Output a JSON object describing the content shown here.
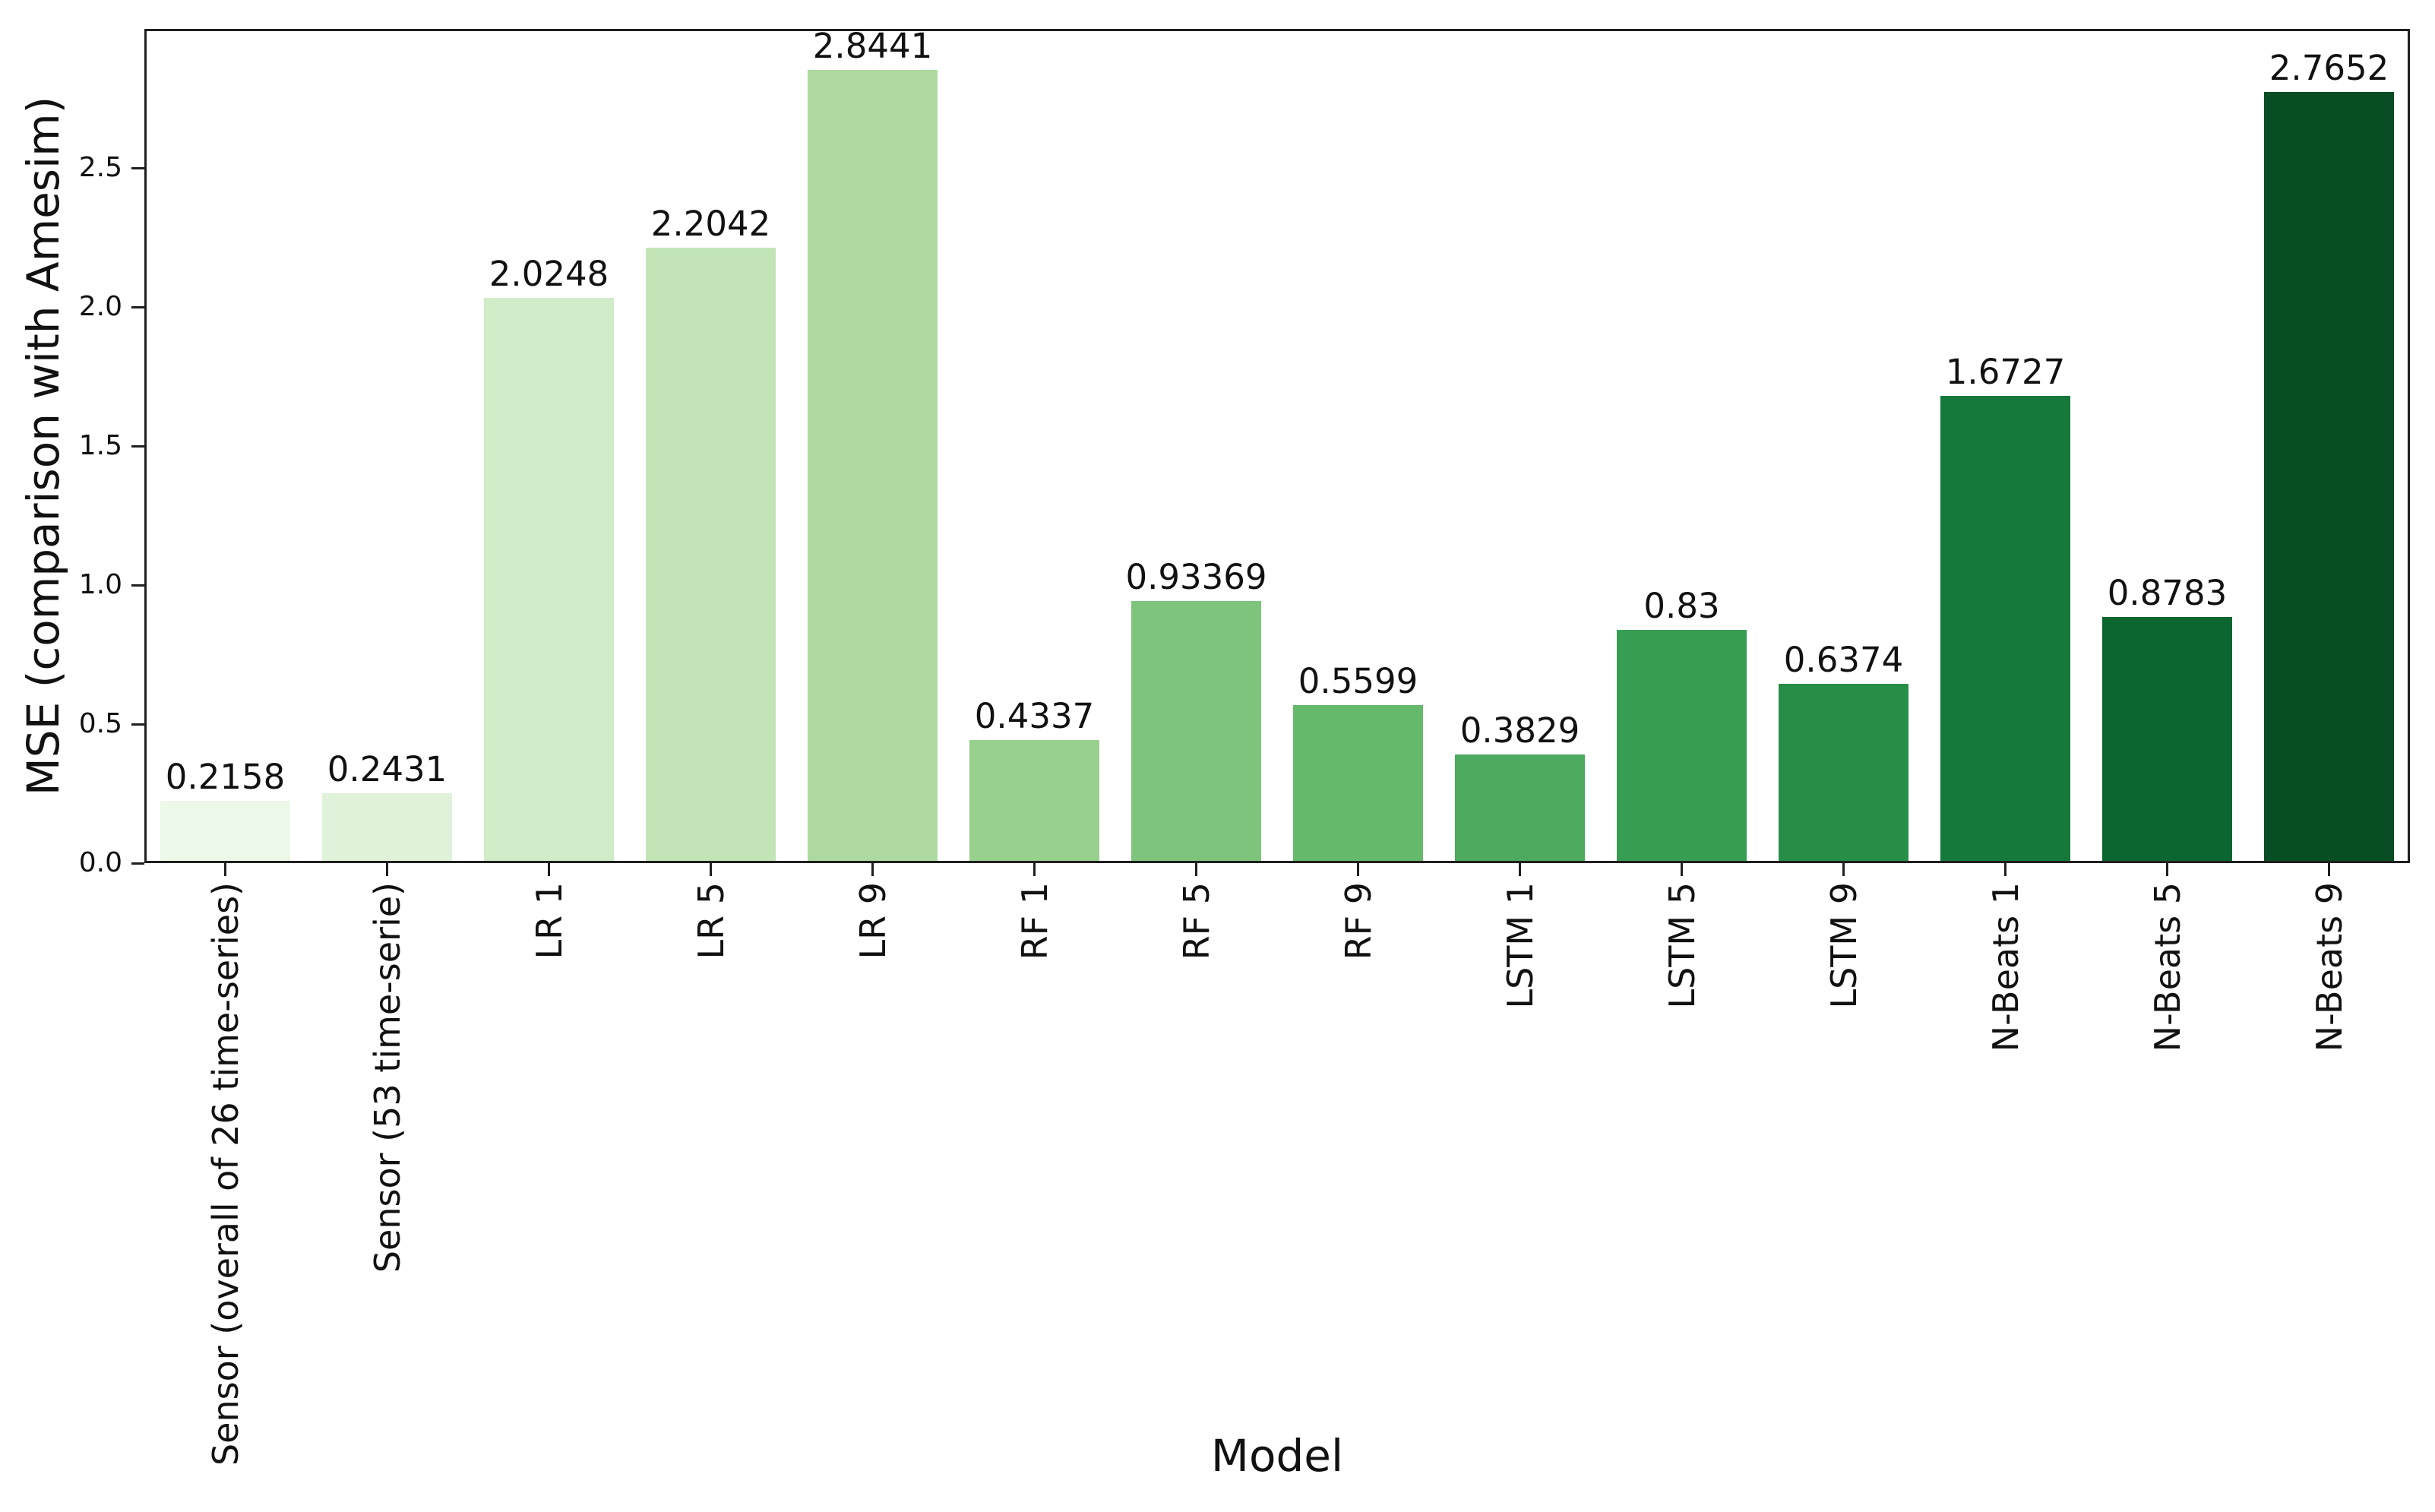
{
  "chart_data": {
    "type": "bar",
    "title": "",
    "xlabel": "Model",
    "ylabel": "MSE (comparison with Amesim)",
    "ylim": [
      0,
      3.0
    ],
    "yticks": [
      0.0,
      0.5,
      1.0,
      1.5,
      2.0,
      2.5
    ],
    "grid": false,
    "legend": null,
    "categories": [
      "Sensor (overall of 26 time-series)",
      "Sensor (53 time-serie)",
      "LR 1",
      "LR 5",
      "LR 9",
      "RF 1",
      "RF 5",
      "RF 9",
      "LSTM 1",
      "LSTM 5",
      "LSTM 9",
      "N-Beats 1",
      "N-Beats 5",
      "N-Beats 9"
    ],
    "values": [
      0.2158,
      0.2431,
      2.0248,
      2.2042,
      2.8441,
      0.4337,
      0.93369,
      0.5599,
      0.3829,
      0.83,
      0.6374,
      1.6727,
      0.8783,
      2.7652
    ],
    "value_labels": [
      "0.2158",
      "0.2431",
      "2.0248",
      "2.2042",
      "2.8441",
      "0.4337",
      "0.93369",
      "0.5599",
      "0.3829",
      "0.83",
      "0.6374",
      "1.6727",
      "0.8783",
      "2.7652"
    ],
    "bar_colors": [
      "#ecf8e8",
      "#e0f3da",
      "#d1ecc9",
      "#c2e4b6",
      "#aedaa1",
      "#98d08d",
      "#7fc47c",
      "#65b96a",
      "#4ca95d",
      "#389e54",
      "#278e48",
      "#15793c",
      "#0b662f",
      "#084d24"
    ],
    "spine_color": "#1f1f1f",
    "text_color": "#111111"
  }
}
